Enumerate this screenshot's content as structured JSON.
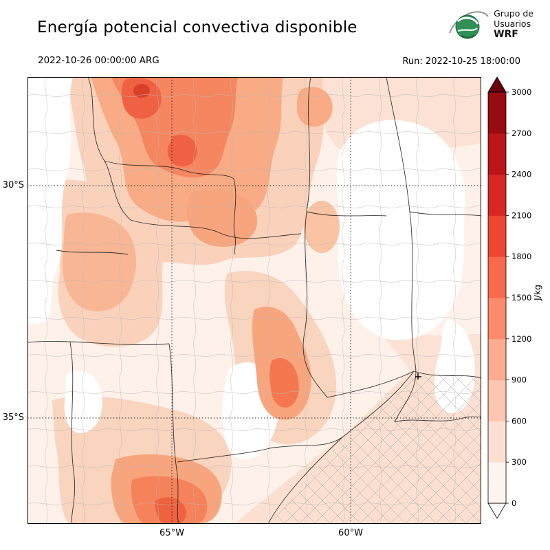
{
  "header": {
    "title": "Energía potencial convectiva disponible",
    "logo": {
      "line1": "Grupo de",
      "line2": "Usuarios",
      "line3": "WRF"
    }
  },
  "subheader": {
    "valid_time": "2022-10-26 00:00:00 ARG",
    "run_label": "Run: 2022-10-25 18:00:00"
  },
  "map_axes": {
    "lat_labels": [
      "30°S",
      "35°S"
    ],
    "lon_labels": [
      "65°W",
      "60°W"
    ]
  },
  "colorbar": {
    "unit": "J/kg",
    "ticks": [
      0,
      300,
      600,
      900,
      1200,
      1500,
      1800,
      2100,
      2400,
      2700,
      3000
    ],
    "segment_colors_bottom_to_top": [
      "#fff5f0",
      "#fee0d2",
      "#fdc6b0",
      "#fcab8f",
      "#fc8a6b",
      "#f9694c",
      "#ef4533",
      "#d92723",
      "#bb151a",
      "#970b13"
    ],
    "below_color": "#ffffff",
    "above_color": "#67000d"
  },
  "chart_data": {
    "type": "heatmap",
    "title": "Energía potencial convectiva disponible",
    "field": "CAPE",
    "unit": "J/kg",
    "valid_time": "2022-10-26 00:00:00 ARG",
    "run": "2022-10-25 18:00:00",
    "levels": [
      0,
      300,
      600,
      900,
      1200,
      1500,
      1800,
      2100,
      2400,
      2700,
      3000
    ],
    "colormap": "Reds",
    "gridlines_lat": [
      "30°S",
      "35°S"
    ],
    "gridlines_lon": [
      "65°W",
      "60°W"
    ],
    "legend_position": "right",
    "notes": "Filled CAPE contours over central Argentina with province and department boundaries; maxima ~900-1500 J/kg in the north/northwest and a secondary maximum in the south-southwest; near-zero values along the western edge and in the east-central region."
  }
}
